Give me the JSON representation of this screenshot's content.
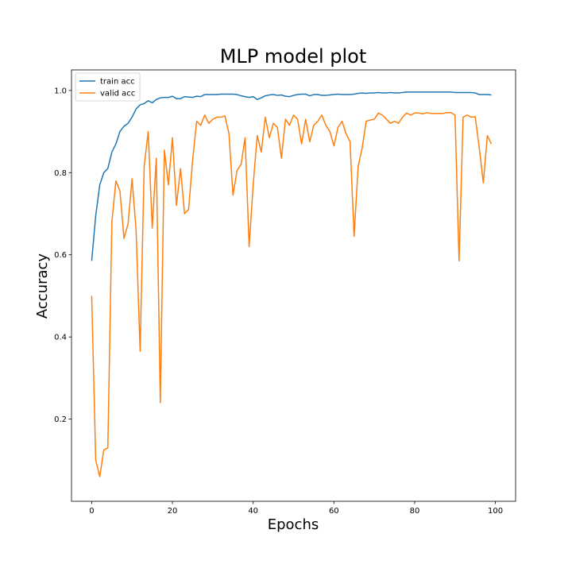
{
  "chart_data": {
    "type": "line",
    "title": "MLP model plot",
    "xlabel": "Epochs",
    "ylabel": "Accuracy",
    "xlim": [
      -5,
      105
    ],
    "ylim": [
      0.0,
      1.05
    ],
    "xticks": [
      0,
      20,
      40,
      60,
      80,
      100
    ],
    "yticks": [
      0.2,
      0.4,
      0.6,
      0.8,
      1.0
    ],
    "grid": false,
    "legend_position": "top-left",
    "series": [
      {
        "name": "train acc",
        "color": "#1f77b4",
        "x": [
          0,
          1,
          2,
          3,
          4,
          5,
          6,
          7,
          8,
          9,
          10,
          11,
          12,
          13,
          14,
          15,
          16,
          17,
          18,
          19,
          20,
          21,
          22,
          23,
          24,
          25,
          26,
          27,
          28,
          29,
          30,
          31,
          32,
          33,
          34,
          35,
          36,
          37,
          38,
          39,
          40,
          41,
          42,
          43,
          44,
          45,
          46,
          47,
          48,
          49,
          50,
          51,
          52,
          53,
          54,
          55,
          56,
          57,
          58,
          59,
          60,
          61,
          62,
          63,
          64,
          65,
          66,
          67,
          68,
          69,
          70,
          71,
          72,
          73,
          74,
          75,
          76,
          77,
          78,
          79,
          80,
          81,
          82,
          83,
          84,
          85,
          86,
          87,
          88,
          89,
          90,
          91,
          92,
          93,
          94,
          95,
          96,
          97,
          98,
          99
        ],
        "values": [
          0.585,
          0.695,
          0.77,
          0.8,
          0.81,
          0.85,
          0.87,
          0.9,
          0.913,
          0.92,
          0.935,
          0.955,
          0.965,
          0.968,
          0.975,
          0.97,
          0.978,
          0.982,
          0.983,
          0.983,
          0.986,
          0.98,
          0.98,
          0.985,
          0.984,
          0.983,
          0.986,
          0.985,
          0.99,
          0.99,
          0.99,
          0.99,
          0.991,
          0.991,
          0.991,
          0.991,
          0.99,
          0.987,
          0.985,
          0.983,
          0.985,
          0.978,
          0.982,
          0.987,
          0.989,
          0.99,
          0.988,
          0.989,
          0.986,
          0.985,
          0.988,
          0.99,
          0.991,
          0.991,
          0.987,
          0.99,
          0.99,
          0.988,
          0.988,
          0.989,
          0.99,
          0.991,
          0.99,
          0.99,
          0.99,
          0.991,
          0.993,
          0.994,
          0.993,
          0.994,
          0.994,
          0.995,
          0.994,
          0.994,
          0.995,
          0.994,
          0.994,
          0.995,
          0.996,
          0.996,
          0.996,
          0.996,
          0.996,
          0.996,
          0.996,
          0.996,
          0.996,
          0.996,
          0.996,
          0.996,
          0.995,
          0.995,
          0.995,
          0.995,
          0.995,
          0.994,
          0.99,
          0.99,
          0.99,
          0.989
        ]
      },
      {
        "name": "valid acc",
        "color": "#ff7f0e",
        "x": [
          0,
          1,
          2,
          3,
          4,
          5,
          6,
          7,
          8,
          9,
          10,
          11,
          12,
          13,
          14,
          15,
          16,
          17,
          18,
          19,
          20,
          21,
          22,
          23,
          24,
          25,
          26,
          27,
          28,
          29,
          30,
          31,
          32,
          33,
          34,
          35,
          36,
          37,
          38,
          39,
          40,
          41,
          42,
          43,
          44,
          45,
          46,
          47,
          48,
          49,
          50,
          51,
          52,
          53,
          54,
          55,
          56,
          57,
          58,
          59,
          60,
          61,
          62,
          63,
          64,
          65,
          66,
          67,
          68,
          69,
          70,
          71,
          72,
          73,
          74,
          75,
          76,
          77,
          78,
          79,
          80,
          81,
          82,
          83,
          84,
          85,
          86,
          87,
          88,
          89,
          90,
          91,
          92,
          93,
          94,
          95,
          96,
          97,
          98,
          99
        ],
        "values": [
          0.5,
          0.1,
          0.06,
          0.125,
          0.13,
          0.68,
          0.78,
          0.755,
          0.64,
          0.675,
          0.785,
          0.66,
          0.365,
          0.815,
          0.9,
          0.665,
          0.835,
          0.24,
          0.855,
          0.77,
          0.885,
          0.72,
          0.81,
          0.7,
          0.71,
          0.83,
          0.925,
          0.915,
          0.94,
          0.92,
          0.93,
          0.935,
          0.935,
          0.938,
          0.895,
          0.745,
          0.805,
          0.82,
          0.885,
          0.62,
          0.77,
          0.89,
          0.85,
          0.935,
          0.885,
          0.92,
          0.91,
          0.835,
          0.93,
          0.915,
          0.94,
          0.93,
          0.87,
          0.93,
          0.875,
          0.915,
          0.925,
          0.94,
          0.915,
          0.9,
          0.865,
          0.91,
          0.925,
          0.895,
          0.875,
          0.645,
          0.815,
          0.86,
          0.925,
          0.928,
          0.93,
          0.945,
          0.94,
          0.93,
          0.92,
          0.925,
          0.92,
          0.935,
          0.945,
          0.94,
          0.945,
          0.945,
          0.943,
          0.946,
          0.944,
          0.944,
          0.944,
          0.944,
          0.946,
          0.946,
          0.94,
          0.585,
          0.935,
          0.94,
          0.935,
          0.936,
          0.86,
          0.775,
          0.89,
          0.87
        ]
      }
    ]
  }
}
